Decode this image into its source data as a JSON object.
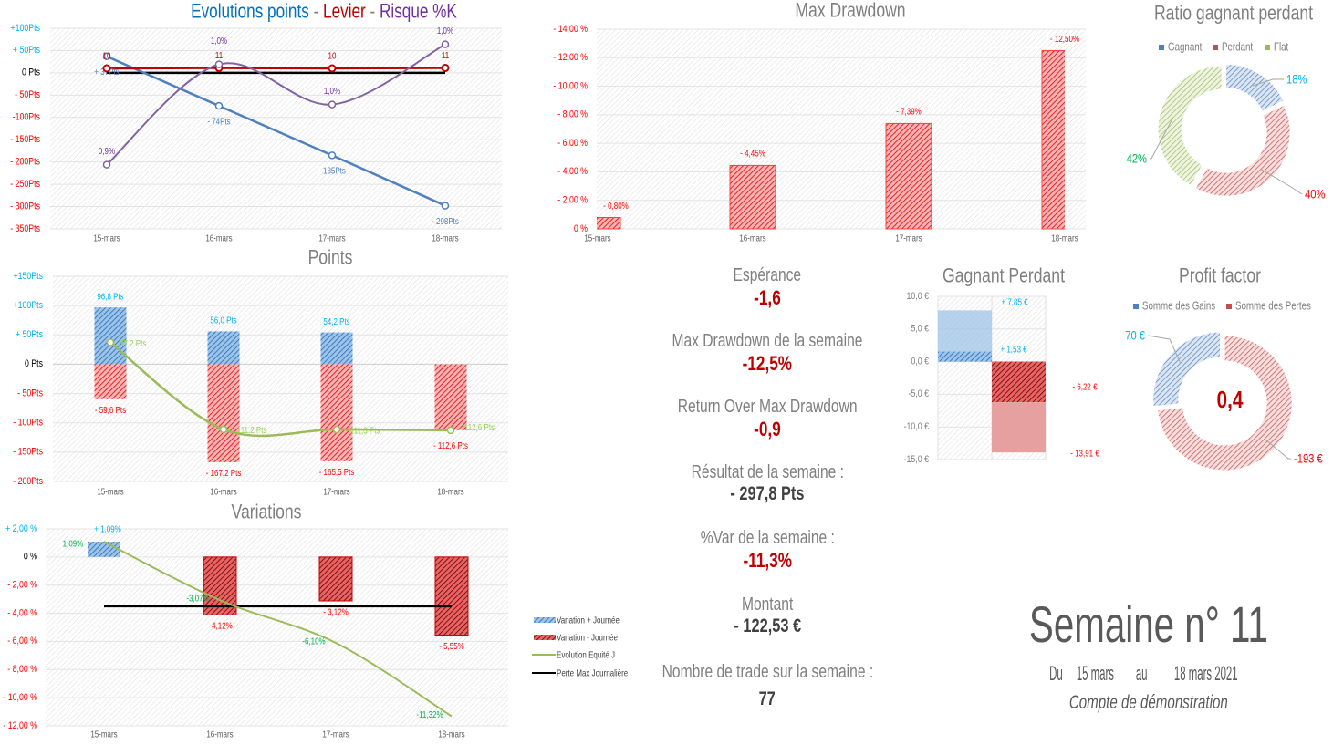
{
  "chart_data": [
    {
      "id": "evolution",
      "type": "line",
      "title_parts": [
        {
          "text": "Evolutions points",
          "color": "#0070c0"
        },
        {
          "text": " - ",
          "color": "#7f7f7f"
        },
        {
          "text": "Levier",
          "color": "#c00000"
        },
        {
          "text": " - ",
          "color": "#7f7f7f"
        },
        {
          "text": "Risque %K",
          "color": "#7030a0"
        }
      ],
      "categories": [
        "15-mars",
        "16-mars",
        "17-mars",
        "18-mars"
      ],
      "ylim": [
        -350,
        100
      ],
      "y_ticks": [
        100,
        50,
        0,
        -50,
        -100,
        -150,
        -200,
        -250,
        -300,
        -350
      ],
      "y_tick_labels": [
        "+100Pts",
        "+ 50Pts",
        "0 Pts",
        "- 50Pts",
        "-100Pts",
        "- 150Pts",
        "- 200Pts",
        "- 250Pts",
        "- 300Pts",
        "- 350Pts"
      ],
      "y2lim": [
        0.836,
        1.036
      ],
      "grid": true,
      "series": [
        {
          "name": "Evolutions points",
          "color": "#4f81bd",
          "values": [
            37,
            -74,
            -185,
            -298
          ],
          "labels": [
            "+ 37Pts",
            "- 74Pts",
            "- 185Pts",
            "- 298Pts"
          ]
        },
        {
          "name": "Levier",
          "color": "#c00000",
          "values": [
            10,
            11,
            10,
            11
          ],
          "labels": [
            "10",
            "11",
            "10",
            "11"
          ]
        },
        {
          "name": "Risque %K",
          "axis": "secondary",
          "color": "#8064a2",
          "values": [
            0.9,
            1.0,
            0.96,
            1.02
          ],
          "labels": [
            "0,9%",
            "1,0%",
            "1,0%",
            "1,0%"
          ]
        }
      ]
    },
    {
      "id": "points",
      "type": "bar",
      "title": "Points",
      "categories": [
        "15-mars",
        "16-mars",
        "17-mars",
        "18-mars"
      ],
      "ylim": [
        -200,
        150
      ],
      "y_ticks": [
        150,
        100,
        50,
        0,
        -50,
        -100,
        -150,
        -200
      ],
      "y_tick_labels": [
        "+150Pts",
        "+100Pts",
        "+ 50Pts",
        "0 Pts",
        "- 50Pts",
        "- 100Pts",
        "- 150Pts",
        "- 200Pts"
      ],
      "grid": true,
      "series": [
        {
          "type": "bar",
          "color": "#2e75b6",
          "values": [
            96.8,
            56.0,
            54.2,
            null
          ],
          "labels": [
            "96,8 Pts",
            "56,0 Pts",
            "54,2 Pts",
            null
          ]
        },
        {
          "type": "bar",
          "color": "#ff0000",
          "values": [
            -59.6,
            -167.2,
            -165.5,
            -112.6
          ],
          "labels": [
            "- 59,6 Pts",
            "- 167,2 Pts",
            "- 165,5 Pts",
            "- 112,6 Pts"
          ]
        },
        {
          "type": "line",
          "color": "#9bbb59",
          "values": [
            37.2,
            -111.2,
            -111.3,
            -112.6
          ],
          "labels": [
            "37,2 Pts",
            "- 111,2 Pts",
            "- 111,3 Pts",
            "- 112,6 Pts"
          ]
        }
      ]
    },
    {
      "id": "variations",
      "type": "bar",
      "title": "Variations",
      "categories": [
        "15-mars",
        "16-mars",
        "17-mars",
        "18-mars"
      ],
      "ylim": [
        -12,
        2
      ],
      "y_ticks": [
        2,
        0,
        -2,
        -4,
        -6,
        -8,
        -10,
        -12
      ],
      "y_tick_labels": [
        "+ 2,00 %",
        "0 %",
        "- 2,00 %",
        "- 4,00 %",
        "- 6,00 %",
        "- 8,00 %",
        "- 10,00 %",
        "- 12,00 %"
      ],
      "grid": true,
      "legend_position": "right",
      "series": [
        {
          "name": "Variation + Journée",
          "type": "bar",
          "color": "#2e75b6",
          "values": [
            1.09,
            null,
            null,
            null
          ],
          "labels": [
            "+ 1,09%",
            null,
            null,
            null
          ]
        },
        {
          "name": "Variation - Journée",
          "type": "bar",
          "color": "#c00000",
          "values": [
            null,
            -4.12,
            -3.12,
            -5.55
          ],
          "labels": [
            null,
            "- 4,12%",
            "- 3,12%",
            "- 5,55%"
          ]
        },
        {
          "name": "Evolution  Equité J",
          "type": "line",
          "color": "#9bbb59",
          "values": [
            1.09,
            -3.07,
            -6.1,
            -11.32
          ],
          "labels": [
            "1,09%",
            "-3,07%",
            "-6,10%",
            "-11,32%"
          ]
        },
        {
          "name": "Perte Max Journalière",
          "type": "line",
          "color": "#000000",
          "values": [
            -3.5,
            -3.5,
            -3.5,
            -3.5
          ]
        }
      ]
    },
    {
      "id": "max-drawdown",
      "type": "bar",
      "title": "Max Drawdown",
      "categories": [
        "15-mars",
        "16-mars",
        "17-mars",
        "18-mars"
      ],
      "ylim": [
        0,
        -14
      ],
      "y_ticks": [
        14,
        12,
        10,
        8,
        6,
        4,
        2,
        0
      ],
      "y_tick_labels": [
        "- 14,00 %",
        "- 12,00 %",
        "- 10,00 %",
        "- 8,00 %",
        "- 6,00 %",
        "- 4,00 %",
        "- 2,00 %",
        "0 %"
      ],
      "grid": true,
      "values": [
        -0.8,
        -4.45,
        -7.39,
        -12.5
      ],
      "labels": [
        "- 0,80%",
        "- 4,45%",
        "- 7,39%",
        "- 12,50%"
      ],
      "color": "#ff0000"
    },
    {
      "id": "ratio",
      "type": "pie",
      "title": "Ratio gagnant perdant",
      "legend_position": "top",
      "slices": [
        {
          "name": "Gagnant",
          "value": 18,
          "label": "18%",
          "color": "#4f81bd",
          "label_color": "#00b0f0"
        },
        {
          "name": "Perdant",
          "value": 40,
          "label": "40%",
          "color": "#c0504d",
          "label_color": "#ff0000"
        },
        {
          "name": "Flat",
          "value": 42,
          "label": "42%",
          "color": "#9bbb59",
          "label_color": "#00b050"
        }
      ]
    },
    {
      "id": "gagnant-perdant",
      "type": "bar",
      "title": "Gagnant Perdant",
      "ylim": [
        -15,
        10
      ],
      "y_ticks": [
        10,
        5,
        0,
        -5,
        -10,
        -15
      ],
      "y_tick_labels": [
        "10,0 €",
        "5,0 €",
        "0,0 €",
        "-5,0 €",
        "-10,0 €",
        "-15,0 €"
      ],
      "series": [
        {
          "values": [
            7.85,
            1.53
          ],
          "labels": [
            "+ 7,85 €",
            "+ 1,53 €"
          ],
          "color": "#5b9bd5"
        },
        {
          "values": [
            -6.22,
            -13.91
          ],
          "labels": [
            "- 6,22 €",
            "- 13,91 €"
          ],
          "color": "#c00000"
        }
      ]
    },
    {
      "id": "profit-factor",
      "type": "pie",
      "title": "Profit factor",
      "legend_position": "top",
      "center_value": "0,4",
      "slices": [
        {
          "name": "Somme des Gains",
          "value": 70,
          "label": "70 €",
          "color": "#4f81bd",
          "label_color": "#00b0f0"
        },
        {
          "name": "Somme des Pertes",
          "value": 193,
          "label": "-193 €",
          "color": "#c0504d",
          "label_color": "#ff0000"
        }
      ]
    }
  ],
  "stats": {
    "esperance": {
      "label": "Espérance",
      "value": "-1,6"
    },
    "max_dd": {
      "label": "Max Drawdown de la semaine",
      "value": "-12,5%"
    },
    "return_dd": {
      "label": "Return Over Max Drawdown",
      "value": "-0,9"
    },
    "resultat": {
      "label": "Résultat de la semaine :",
      "value": "- 297,8 Pts"
    },
    "var": {
      "label": "%Var de la semaine :",
      "value": "-11,3%"
    },
    "montant": {
      "label": "Montant",
      "value": "- 122,53 €"
    },
    "trades": {
      "label": "Nombre de trade sur la semaine :",
      "value": "77"
    }
  },
  "week": {
    "title": "Semaine n° 11",
    "from_prefix": "Du",
    "from": "15 mars",
    "to_prefix": "au",
    "to": "18 mars 2021",
    "account": "Compte de démonstration"
  }
}
